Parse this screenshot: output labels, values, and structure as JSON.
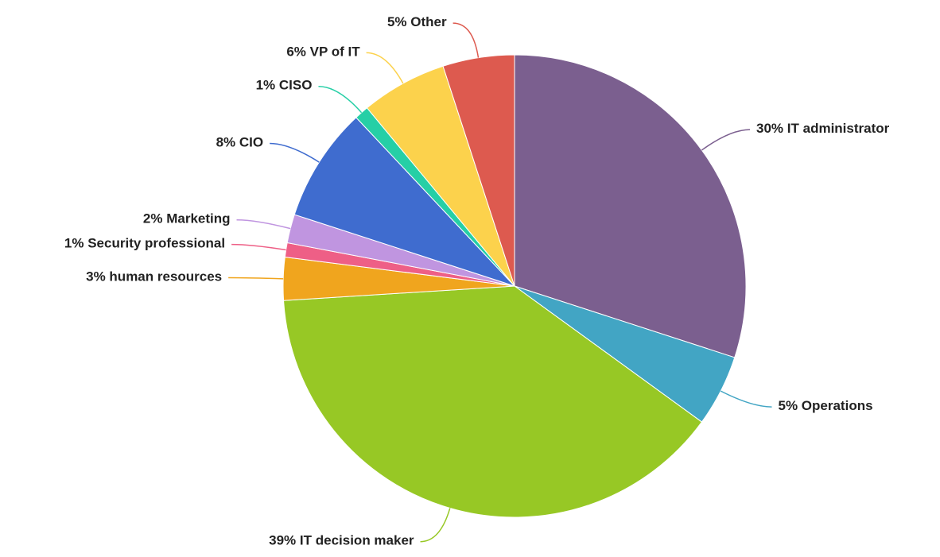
{
  "chart_data": {
    "type": "pie",
    "categories": [
      "IT administrator",
      "Operations",
      "IT decision maker",
      "human resources",
      "Security professional",
      "Marketing",
      "CIO",
      "CISO",
      "VP of IT",
      "Other"
    ],
    "values": [
      30,
      5,
      39,
      3,
      1,
      2,
      8,
      1,
      6,
      5
    ],
    "value_labels": [
      "30%",
      "5%",
      "39%",
      "3%",
      "1%",
      "2%",
      "8%",
      "1%",
      "6%",
      "5%"
    ],
    "colors": [
      "#7b5f8f",
      "#42a5c4",
      "#97c825",
      "#f0a51e",
      "#ee5f86",
      "#c095e0",
      "#3f6ccf",
      "#26cfa6",
      "#fcd24c",
      "#dd5a4f"
    ]
  }
}
